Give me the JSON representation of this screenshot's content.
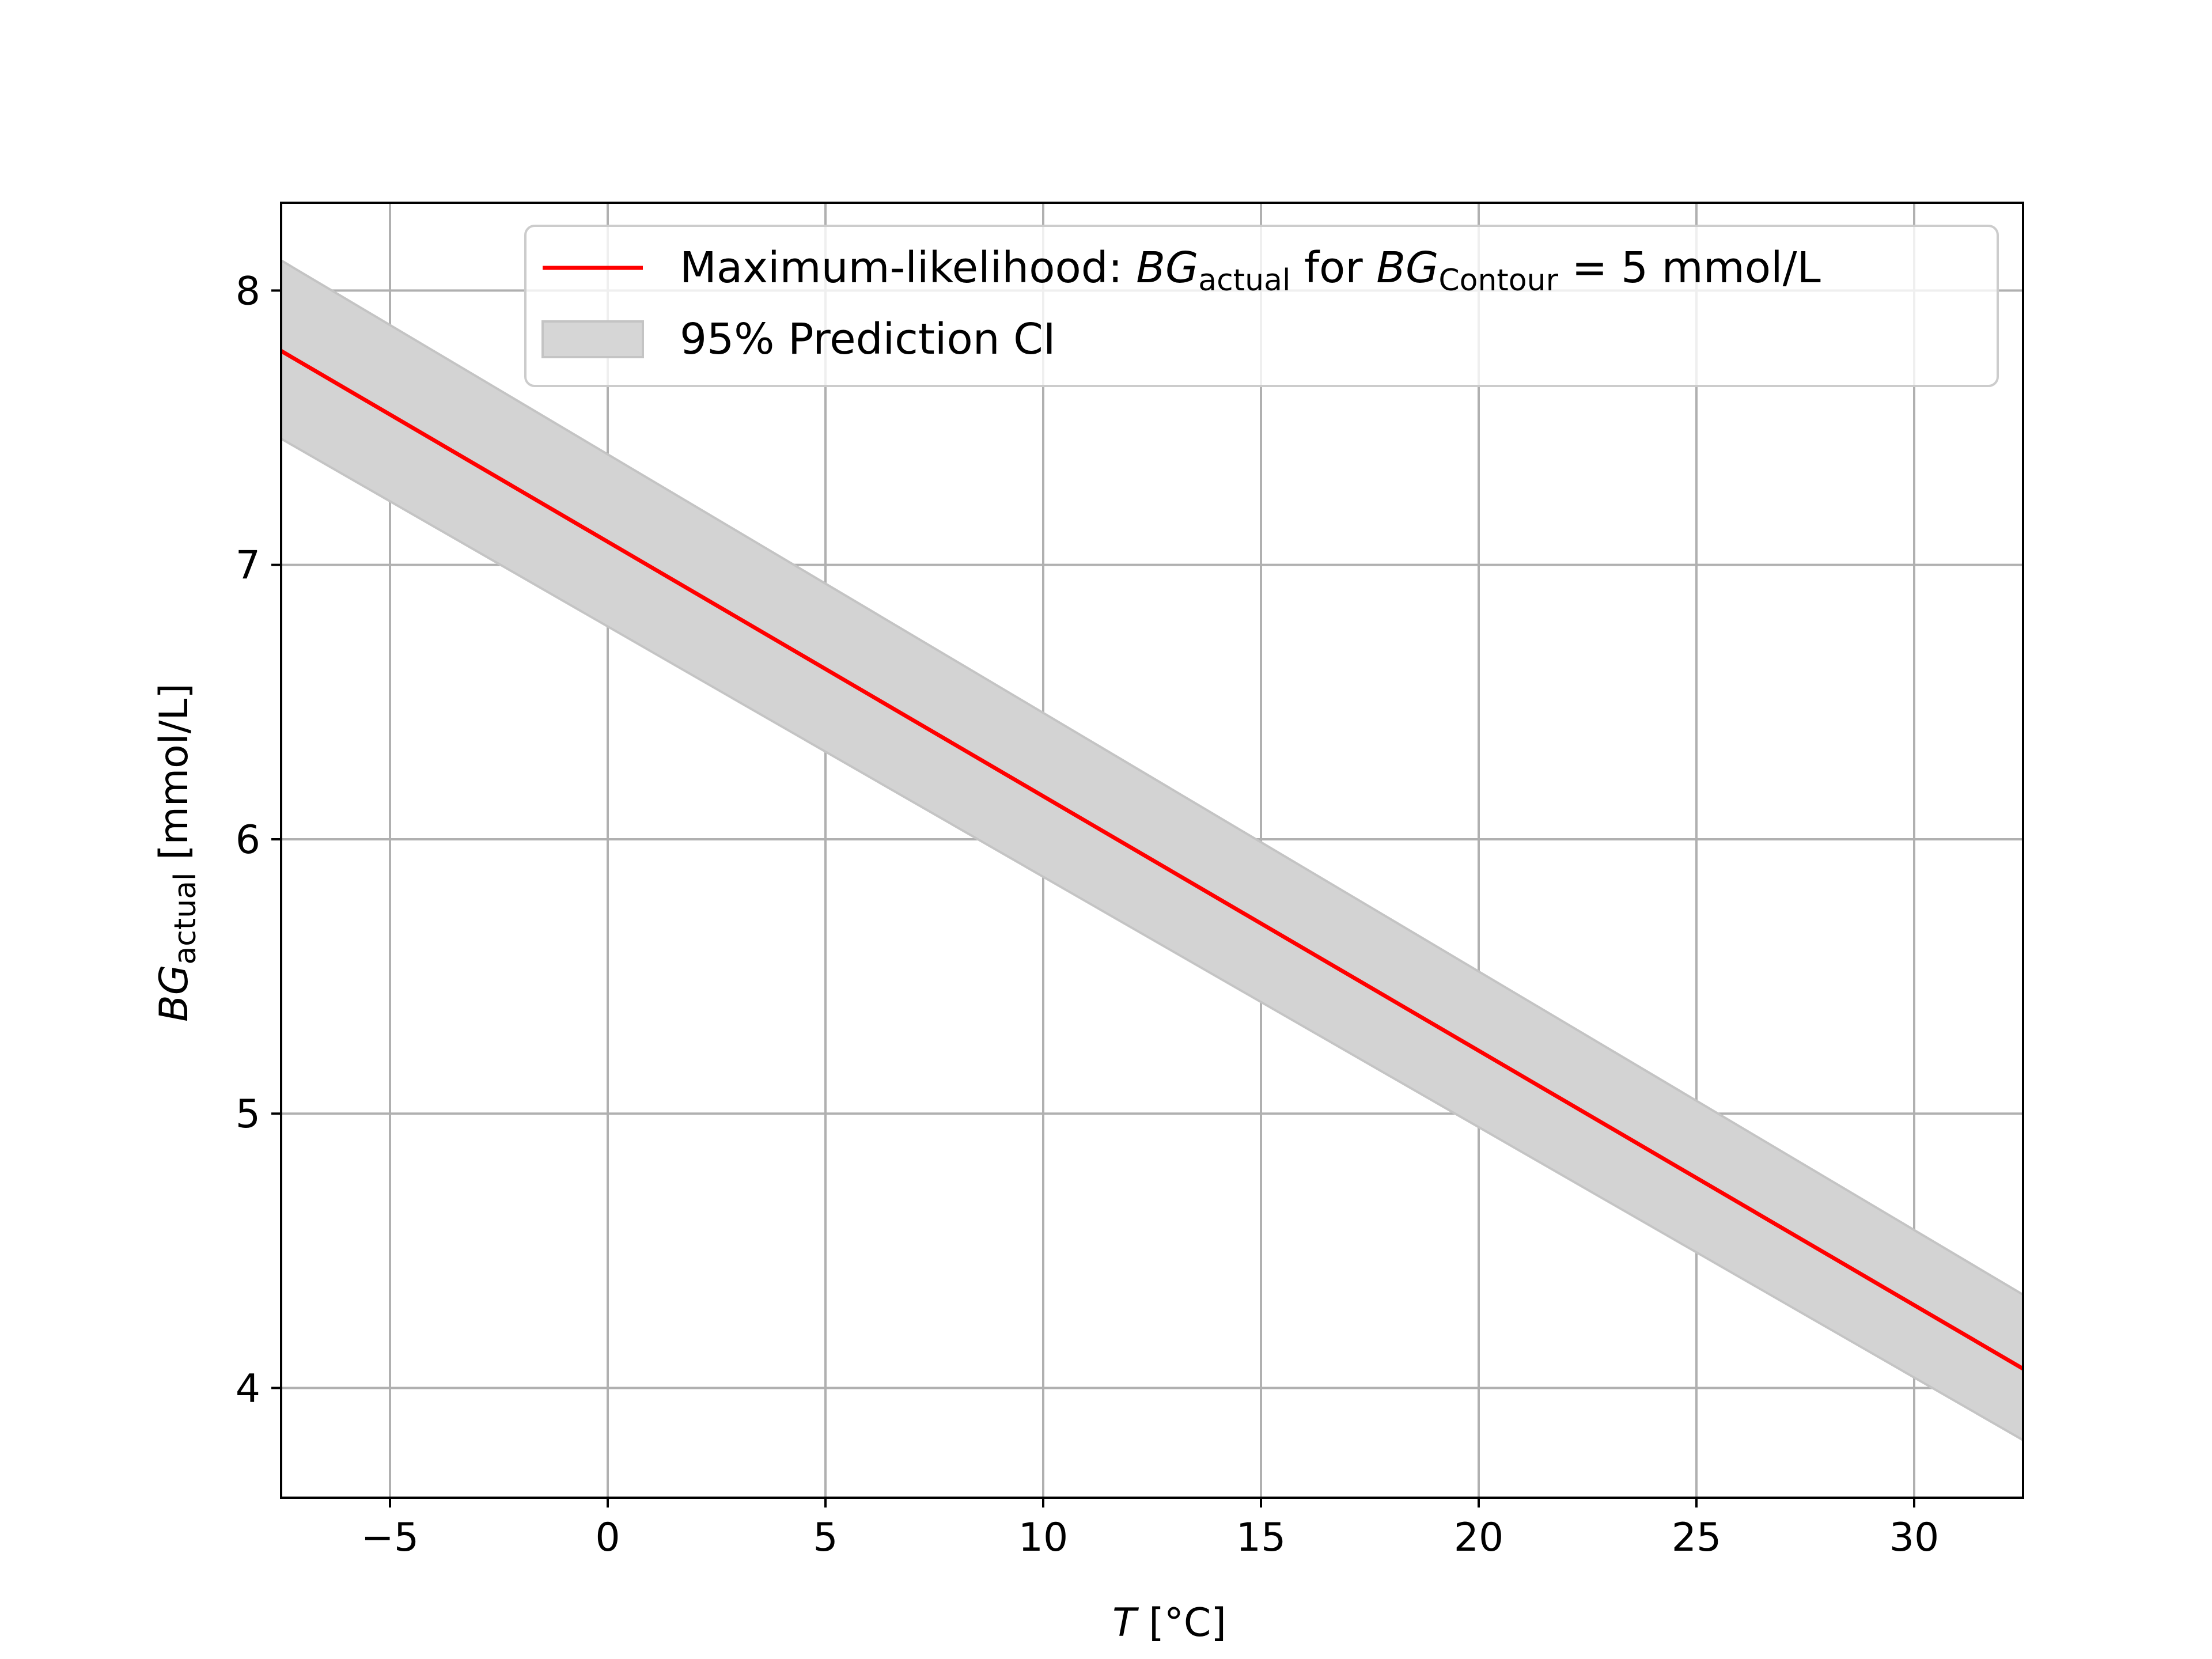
{
  "chart_data": {
    "type": "line",
    "xlabel": {
      "var": "T",
      "unit": " [°C]"
    },
    "ylabel": {
      "var": "BG",
      "sub": "actual",
      "unit": " [mmol/L]"
    },
    "xlim": [
      -7.5,
      32.5
    ],
    "ylim": [
      3.6,
      8.32
    ],
    "xticks": [
      -5,
      0,
      5,
      10,
      15,
      20,
      25,
      30
    ],
    "xtick_labels": [
      "−5",
      "0",
      "5",
      "10",
      "15",
      "20",
      "25",
      "30"
    ],
    "yticks": [
      4,
      5,
      6,
      7,
      8
    ],
    "ytick_labels": [
      "4",
      "5",
      "6",
      "7",
      "8"
    ],
    "grid": true,
    "legend_position": "top-right",
    "series": [
      {
        "kind": "line",
        "color": "#ff0000",
        "x": [
          -7.5,
          32.5
        ],
        "y": [
          7.78,
          4.07
        ],
        "legend": {
          "prefix": "Maximum-likelihood: ",
          "var1": "BG",
          "sub1": "actual",
          "middle": " for ",
          "var2": "BG",
          "sub2": "Contour",
          "suffix": " = 5 mmol/L"
        }
      },
      {
        "kind": "band",
        "color": "#d3d3d3",
        "x": [
          -7.5,
          32.5
        ],
        "lower": [
          7.46,
          3.81
        ],
        "upper": [
          8.11,
          4.34
        ],
        "legend_label": "95% Prediction CI"
      }
    ]
  }
}
